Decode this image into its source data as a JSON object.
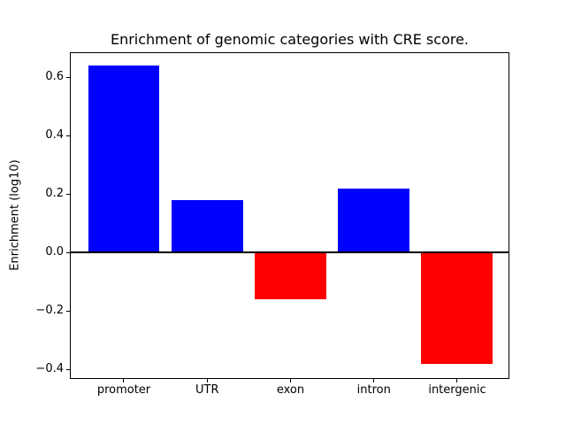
{
  "figure": {
    "background_color": "#ffffff",
    "text_color": "#000000"
  },
  "chart_data": {
    "type": "bar",
    "title": "Enrichment of genomic categories with CRE score.",
    "xlabel": "",
    "ylabel": "Enrichment (log10)",
    "categories": [
      "promoter",
      "UTR",
      "exon",
      "intron",
      "intergenic"
    ],
    "values": [
      0.64,
      0.18,
      -0.16,
      0.22,
      -0.38
    ],
    "colors": [
      "#0000ff",
      "#0000ff",
      "#ff0000",
      "#0000ff",
      "#ff0000"
    ],
    "positive_color": "#0000ff",
    "negative_color": "#ff0000",
    "zero_line_color": "#000000",
    "yticks": [
      0.6,
      0.4,
      0.2,
      0.0,
      -0.2,
      -0.4
    ],
    "ytick_labels": [
      "0.6",
      "0.4",
      "0.2",
      "0.0",
      "−0.2",
      "−0.4"
    ],
    "ylim": [
      -0.43,
      0.683
    ],
    "grid": false,
    "legend": null
  }
}
